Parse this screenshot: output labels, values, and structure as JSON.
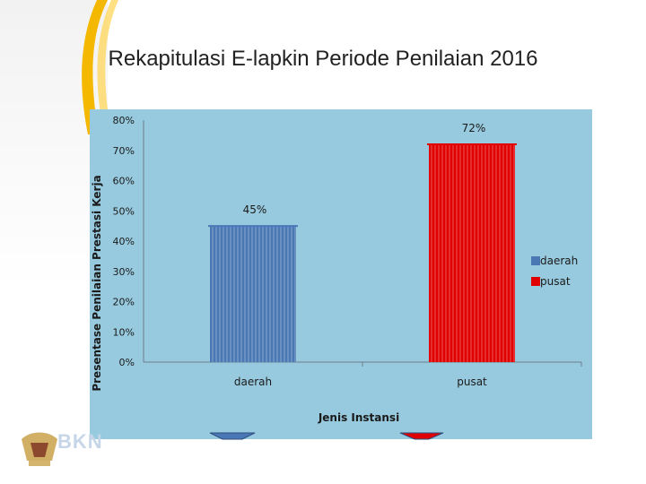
{
  "slide": {
    "title": "Rekapitulasi E-lapkin Periode Penilaian 2016",
    "brand": "BKN"
  },
  "colors": {
    "background": "#97cade",
    "daerah": "#4a78b5",
    "pusat": "#e00000"
  },
  "chart_data": {
    "type": "bar",
    "title": "",
    "xlabel": "Jenis Instansi",
    "ylabel": "Presentase Penilaian Prestasi Kerja",
    "categories": [
      "daerah",
      "pusat"
    ],
    "values": [
      45,
      72
    ],
    "value_labels": [
      "45%",
      "72%"
    ],
    "ylim": [
      0,
      80
    ],
    "yticks": [
      "0%",
      "10%",
      "20%",
      "30%",
      "40%",
      "50%",
      "60%",
      "70%",
      "80%"
    ],
    "legend": {
      "placement": "right",
      "entries": [
        "daerah",
        "pusat"
      ]
    }
  }
}
